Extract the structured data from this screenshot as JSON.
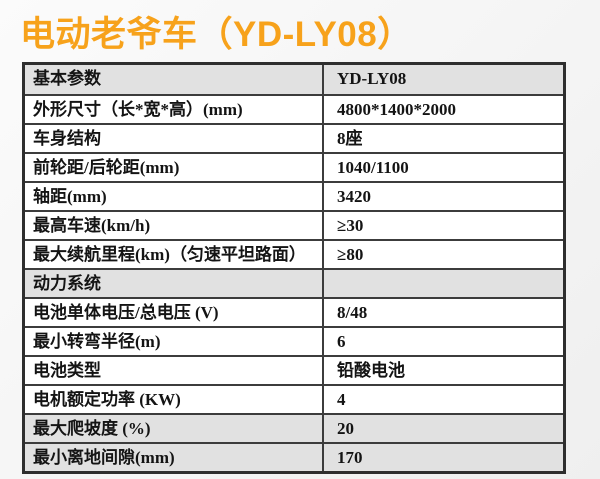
{
  "page": {
    "title": "电动老爷车（YD-LY08）",
    "title_color": "#F7A21B"
  },
  "table": {
    "shaded_row_color": "#E1E1E1",
    "border_color": "#2E2E2E",
    "header": {
      "label": "基本参数",
      "value": "YD-LY08"
    },
    "rows": [
      {
        "label": "基本参数",
        "value": "YD-LY08",
        "shaded": true
      },
      {
        "label": "外形尺寸（长*宽*高）(mm)",
        "value": "4800*1400*2000",
        "shaded": false
      },
      {
        "label": "车身结构",
        "value": "8座",
        "shaded": false
      },
      {
        "label": "前轮距/后轮距(mm)",
        "value": "1040/1100",
        "shaded": false
      },
      {
        "label": "轴距(mm)",
        "value": "3420",
        "shaded": false
      },
      {
        "label": "最高车速(km/h)",
        "value": "≥30",
        "shaded": false
      },
      {
        "label": "最大续航里程(km)（匀速平坦路面）",
        "value": "≥80",
        "shaded": false
      },
      {
        "label": "动力系统",
        "value": "",
        "shaded": true
      },
      {
        "label": "电池单体电压/总电压 (V)",
        "value": "8/48",
        "shaded": false
      },
      {
        "label": "最小转弯半径(m)",
        "value": "6",
        "shaded": false
      },
      {
        "label": "电池类型",
        "value": "铅酸电池",
        "shaded": false
      },
      {
        "label": "电机额定功率 (KW)",
        "value": "4",
        "shaded": false
      },
      {
        "label": "最大爬坡度 (%)",
        "value": "20",
        "shaded": true
      },
      {
        "label": "最小离地间隙(mm)",
        "value": "170",
        "shaded": true
      }
    ]
  }
}
